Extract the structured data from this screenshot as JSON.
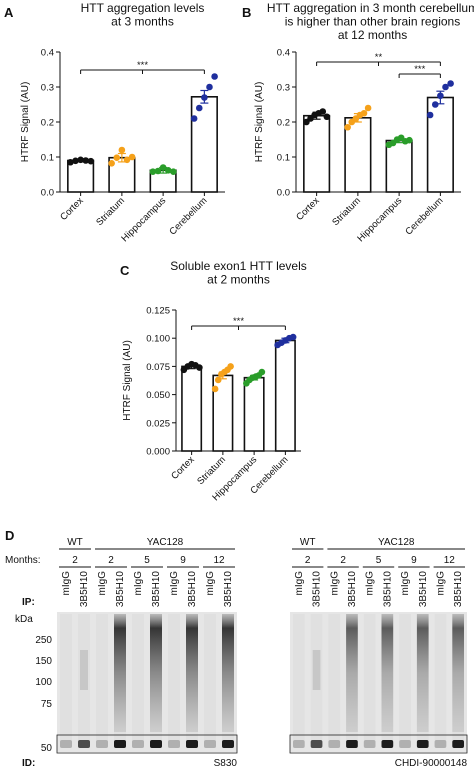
{
  "colors": {
    "cortex": "#111111",
    "striatum": "#f5a11a",
    "hippocampus": "#2a9d2a",
    "cerebellum": "#1f2f9e"
  },
  "chart_data": [
    {
      "panel": "A",
      "type": "bar",
      "title_lines": [
        "HTT aggregation levels",
        "at 3 months"
      ],
      "ylabel": "HTRF Signal (AU)",
      "xlabel": "",
      "categories": [
        "Cortex",
        "Striatum",
        "Hippocampus",
        "Cerebellum"
      ],
      "values": [
        0.09,
        0.098,
        0.062,
        0.272
      ],
      "errors": [
        0.004,
        0.012,
        0.008,
        0.018
      ],
      "points": [
        [
          0.085,
          0.089,
          0.092,
          0.09,
          0.088
        ],
        [
          0.082,
          0.098,
          0.12,
          0.092,
          0.1
        ],
        [
          0.058,
          0.06,
          0.07,
          0.062,
          0.058
        ],
        [
          0.21,
          0.24,
          0.27,
          0.3,
          0.33
        ]
      ],
      "ylim": [
        0,
        0.4
      ],
      "yticks": [
        "0.0",
        "0.1",
        "0.2",
        "0.3",
        "0.4"
      ],
      "significance": [
        {
          "label": "***",
          "from": 0,
          "to": 3
        }
      ]
    },
    {
      "panel": "B",
      "type": "bar",
      "title_lines": [
        "HTT aggregation in 3 month cerebellum",
        "is higher than other brain regions",
        "at 12 months"
      ],
      "ylabel": "HTRF Signal (AU)",
      "xlabel": "",
      "categories": [
        "Cortex",
        "Striatum",
        "Hippocampus",
        "Cerebellum"
      ],
      "values": [
        0.218,
        0.212,
        0.147,
        0.27
      ],
      "errors": [
        0.01,
        0.012,
        0.006,
        0.018
      ],
      "points": [
        [
          0.2,
          0.21,
          0.22,
          0.225,
          0.23,
          0.215
        ],
        [
          0.185,
          0.2,
          0.21,
          0.22,
          0.225,
          0.24
        ],
        [
          0.135,
          0.14,
          0.15,
          0.155,
          0.145,
          0.148
        ],
        [
          0.22,
          0.25,
          0.275,
          0.3,
          0.31
        ]
      ],
      "ylim": [
        0,
        0.4
      ],
      "yticks": [
        "0.0",
        "0.1",
        "0.2",
        "0.3",
        "0.4"
      ],
      "significance": [
        {
          "label": "**",
          "from": 0,
          "to": 3
        },
        {
          "label": "***",
          "from": 2,
          "to": 3
        }
      ]
    },
    {
      "panel": "C",
      "type": "bar",
      "title_lines": [
        "Soluble exon1 HTT levels",
        "at 2 months"
      ],
      "ylabel": "HTRF Signal (AU)",
      "xlabel": "",
      "categories": [
        "Cortex",
        "Striatum",
        "Hippocampus",
        "Cerebellum"
      ],
      "values": [
        0.075,
        0.067,
        0.065,
        0.098
      ],
      "errors": [
        0.002,
        0.003,
        0.002,
        0.002
      ],
      "points": [
        [
          0.072,
          0.075,
          0.077,
          0.076,
          0.074
        ],
        [
          0.055,
          0.063,
          0.068,
          0.07,
          0.072,
          0.075
        ],
        [
          0.06,
          0.063,
          0.065,
          0.066,
          0.067,
          0.07
        ],
        [
          0.094,
          0.096,
          0.098,
          0.1,
          0.101
        ]
      ],
      "ylim": [
        0,
        0.125
      ],
      "yticks": [
        "0.000",
        "0.025",
        "0.050",
        "0.075",
        "0.100",
        "0.125"
      ],
      "significance": [
        {
          "label": "***",
          "from": 0,
          "to": 3
        }
      ]
    }
  ],
  "blot": {
    "panel": "D",
    "months_label": "Months:",
    "ip_label": "IP:",
    "kda_label": "kDa",
    "id_label": "ID:",
    "markers": [
      "250",
      "150",
      "100",
      "75",
      "50"
    ],
    "left": {
      "wt": "WT",
      "yac": "YAC128",
      "months": [
        "2",
        "2",
        "5",
        "9",
        "12"
      ],
      "lanes": [
        "mIgG",
        "3B5H10",
        "mIgG",
        "3B5H10",
        "mIgG",
        "3B5H10",
        "mIgG",
        "3B5H10",
        "mIgG",
        "3B5H10"
      ],
      "antibody": "S830"
    },
    "right": {
      "wt": "WT",
      "yac": "YAC128",
      "months": [
        "2",
        "2",
        "5",
        "9",
        "12"
      ],
      "lanes": [
        "mIgG",
        "3B5H10",
        "mIgG",
        "3B5H10",
        "mIgG",
        "3B5H10",
        "mIgG",
        "3B5H10",
        "mIgG",
        "3B5H10"
      ],
      "antibody": "CHDI-90000148"
    }
  }
}
